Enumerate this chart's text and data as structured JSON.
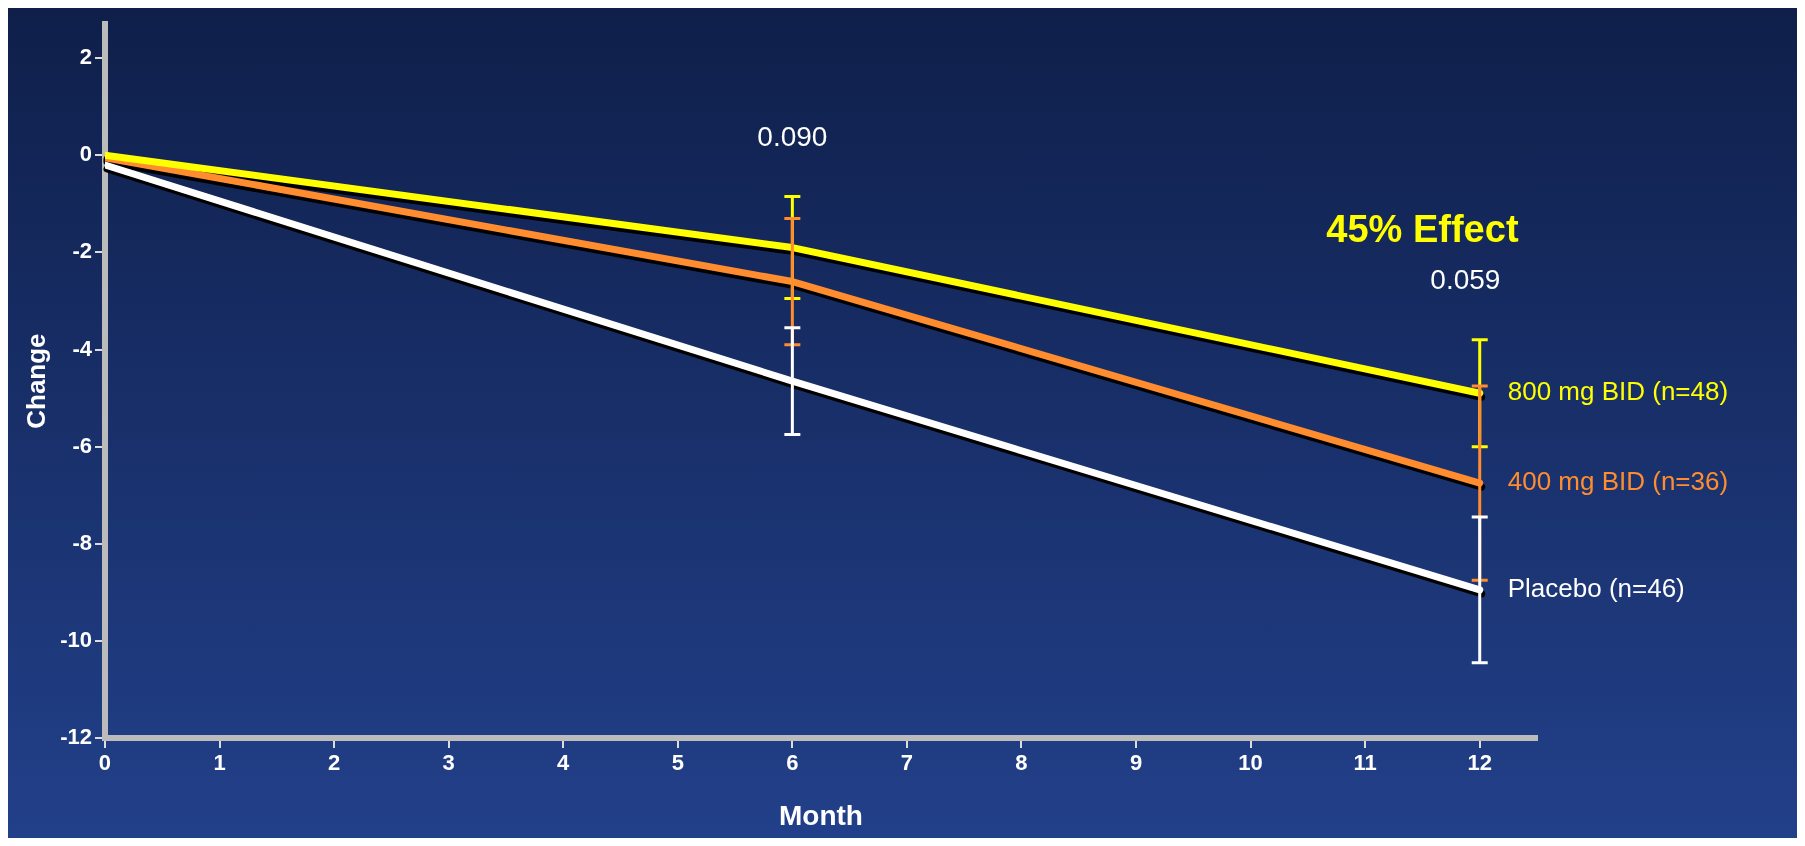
{
  "chart_data": {
    "type": "line",
    "xlabel": "Month",
    "ylabel": "Change",
    "x": [
      0,
      6,
      12
    ],
    "xlim": [
      0,
      12.5
    ],
    "xticks": [
      0,
      1,
      2,
      3,
      4,
      5,
      6,
      7,
      8,
      9,
      10,
      11,
      12
    ],
    "ylim": [
      -12,
      2.7
    ],
    "yticks": [
      -12,
      -10,
      -8,
      -6,
      -4,
      -2,
      0,
      2
    ],
    "grid": false,
    "marker": "none",
    "line_style": "solid",
    "series": [
      {
        "name": "800 mg BID (n=48)",
        "color": "#ffff00",
        "values": [
          0,
          -1.9,
          -4.9
        ],
        "errors": [
          null,
          1.05,
          1.1
        ]
      },
      {
        "name": "400 mg BID (n=36)",
        "color": "#ff8c2e",
        "values": [
          -0.05,
          -2.6,
          -6.75
        ],
        "errors": [
          null,
          1.3,
          2.0
        ]
      },
      {
        "name": "Placebo (n=46)",
        "color": "#ffffff",
        "values": [
          -0.2,
          -4.65,
          -8.95
        ],
        "errors": [
          null,
          1.1,
          1.5
        ]
      }
    ],
    "annotations": [
      "0.090",
      "45% Effect",
      "0.059"
    ]
  }
}
